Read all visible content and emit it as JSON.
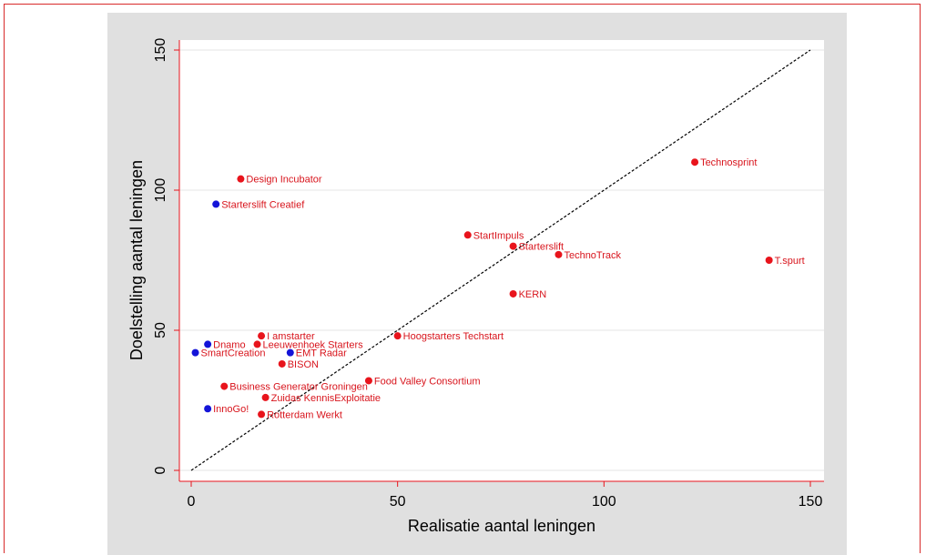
{
  "chart_data": {
    "type": "scatter",
    "xlabel": "Realisatie aantal leningen",
    "ylabel": "Doelstelling aantal leningen",
    "xlim": [
      0,
      150
    ],
    "ylim": [
      0,
      150
    ],
    "xticks": [
      "0",
      "50",
      "100",
      "150"
    ],
    "yticks": [
      "0",
      "50",
      "100",
      "150"
    ],
    "grid": "horizontal",
    "reference_line": {
      "from": [
        0,
        0
      ],
      "to": [
        150,
        150
      ],
      "style": "dashed"
    },
    "colors": {
      "red": "#e8141c",
      "blue": "#1414d8",
      "label": "#d8141c",
      "axis": "#e8141c",
      "background": "#e0e0e0",
      "plot": "#ffffff"
    },
    "points": [
      {
        "label": "Design Incubator",
        "x": 12,
        "y": 104,
        "color": "red"
      },
      {
        "label": "Starterslift Creatief",
        "x": 6,
        "y": 95,
        "color": "blue"
      },
      {
        "label": "Technosprint",
        "x": 122,
        "y": 110,
        "color": "red"
      },
      {
        "label": "StartImpuls",
        "x": 67,
        "y": 84,
        "color": "red"
      },
      {
        "label": "Starterslift",
        "x": 78,
        "y": 80,
        "color": "red"
      },
      {
        "label": "TechnoTrack",
        "x": 89,
        "y": 77,
        "color": "red"
      },
      {
        "label": "T.spurt",
        "x": 140,
        "y": 75,
        "color": "red"
      },
      {
        "label": "KERN",
        "x": 78,
        "y": 63,
        "color": "red"
      },
      {
        "label": "I amstarter",
        "x": 17,
        "y": 48,
        "color": "red"
      },
      {
        "label": "Hoogstarters Techstart",
        "x": 50,
        "y": 48,
        "color": "red"
      },
      {
        "label": "Dnamo",
        "x": 4,
        "y": 45,
        "color": "blue"
      },
      {
        "label": "Leeuwenhoek Starters",
        "x": 16,
        "y": 45,
        "color": "red"
      },
      {
        "label": "SmartCreation",
        "x": 1,
        "y": 42,
        "color": "blue"
      },
      {
        "label": "EMT Radar",
        "x": 24,
        "y": 42,
        "color": "blue"
      },
      {
        "label": "BISON",
        "x": 22,
        "y": 38,
        "color": "red"
      },
      {
        "label": "Food Valley Consortium",
        "x": 43,
        "y": 32,
        "color": "red"
      },
      {
        "label": "Business Generator Groningen",
        "x": 8,
        "y": 30,
        "color": "red"
      },
      {
        "label": "Zuidas KennisExploitatie",
        "x": 18,
        "y": 26,
        "color": "red"
      },
      {
        "label": "InnoGo!",
        "x": 4,
        "y": 22,
        "color": "blue"
      },
      {
        "label": "Rotterdam Werkt",
        "x": 17,
        "y": 20,
        "color": "red"
      }
    ]
  }
}
